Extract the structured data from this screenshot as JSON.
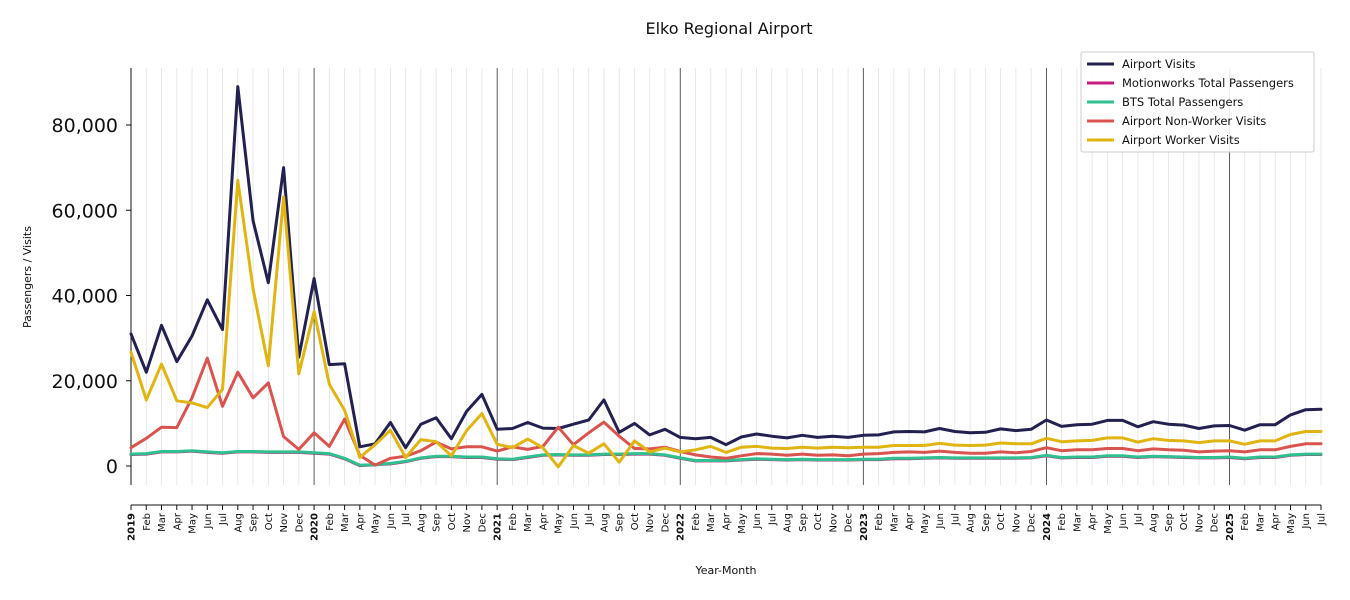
{
  "chart_data": {
    "type": "line",
    "title": "Elko Regional Airport",
    "xlabel": "Year-Month",
    "ylabel": "Passengers / Visits",
    "ylim": [
      -4500,
      93000
    ],
    "yticks": [
      0,
      20000,
      40000,
      60000,
      80000
    ],
    "ytick_labels": [
      "0",
      "20,000",
      "40,000",
      "60,000",
      "80,000"
    ],
    "grid": "vertical lines at each month; darker at each January",
    "legend_position": "top-right",
    "x": [
      "2019",
      "Feb",
      "Mar",
      "Apr",
      "May",
      "Jun",
      "Jul",
      "Aug",
      "Sep",
      "Oct",
      "Nov",
      "Dec",
      "2020",
      "Feb",
      "Mar",
      "Apr",
      "May",
      "Jun",
      "Jul",
      "Aug",
      "Sep",
      "Oct",
      "Nov",
      "Dec",
      "2021",
      "Feb",
      "Mar",
      "Apr",
      "May",
      "Jun",
      "Jul",
      "Aug",
      "Sep",
      "Oct",
      "Nov",
      "Dec",
      "2022",
      "Feb",
      "Mar",
      "Apr",
      "May",
      "Jun",
      "Jul",
      "Aug",
      "Sep",
      "Oct",
      "Nov",
      "Dec",
      "2023",
      "Feb",
      "Mar",
      "Apr",
      "May",
      "Jun",
      "Jul",
      "Aug",
      "Sep",
      "Oct",
      "Nov",
      "Dec",
      "2024",
      "Feb",
      "Mar",
      "Apr",
      "May",
      "Jun",
      "Jul",
      "Aug",
      "Sep",
      "Oct",
      "Nov",
      "Dec",
      "2025",
      "Feb",
      "Mar",
      "Apr",
      "May",
      "Jun",
      "Jul"
    ],
    "series": [
      {
        "name": "Airport Visits",
        "color": "#22214f",
        "values": [
          31000,
          22000,
          33000,
          24500,
          30500,
          39000,
          32000,
          89000,
          57500,
          43000,
          70000,
          25500,
          44000,
          23800,
          24000,
          4500,
          5200,
          10200,
          4300,
          9800,
          11300,
          6400,
          12800,
          16800,
          8600,
          8800,
          10200,
          8900,
          8800,
          9800,
          10800,
          15500,
          7900,
          10000,
          7300,
          8600,
          6700,
          6400,
          6700,
          5000,
          6800,
          7500,
          7000,
          6600,
          7200,
          6700,
          7000,
          6700,
          7200,
          7300,
          8000,
          8100,
          8000,
          8800,
          8100,
          7800,
          7900,
          8700,
          8300,
          8600,
          10800,
          9300,
          9700,
          9800,
          10700,
          10700,
          9200,
          10400,
          9800,
          9600,
          8800,
          9400,
          9500,
          8400,
          9700,
          9700,
          12000,
          13200,
          13300
        ]
      },
      {
        "name": "Motionworks Total Passengers",
        "color": "#c41d7e",
        "values": [
          2700,
          2800,
          3300,
          3300,
          3500,
          3200,
          3000,
          3300,
          3300,
          3200,
          3200,
          3200,
          3000,
          2800,
          1700,
          100,
          300,
          500,
          1000,
          1800,
          2200,
          2200,
          2000,
          2000,
          1600,
          1500,
          2000,
          2500,
          2600,
          2500,
          2500,
          2700,
          2700,
          2800,
          2800,
          2500,
          1800,
          1200,
          1200,
          1200,
          1400,
          1600,
          1500,
          1400,
          1500,
          1400,
          1400,
          1400,
          1500,
          1500,
          1700,
          1700,
          1800,
          1900,
          1800,
          1800,
          1800,
          1800,
          1800,
          1900,
          2400,
          1900,
          2000,
          2000,
          2300,
          2300,
          2000,
          2200,
          2100,
          2000,
          1900,
          1900,
          2000,
          1700,
          2000,
          2000,
          2500,
          2700,
          2700
        ]
      },
      {
        "name": "BTS Total Passengers",
        "color": "#2ec08e",
        "values": [
          2800,
          2900,
          3400,
          3400,
          3600,
          3300,
          3100,
          3400,
          3400,
          3300,
          3300,
          3300,
          3100,
          2900,
          1800,
          200,
          300,
          600,
          1100,
          1900,
          2300,
          2300,
          2100,
          2100,
          1700,
          1600,
          2100,
          2600,
          2700,
          2600,
          2600,
          2800,
          2800,
          2900,
          2900,
          2600,
          1900,
          1300,
          1300,
          1300,
          1500,
          1700,
          1600,
          1500,
          1600,
          1500,
          1500,
          1500,
          1600,
          1600,
          1800,
          1800,
          1900,
          2000,
          1900,
          1900,
          1900,
          1900,
          1900,
          2000,
          2500,
          2000,
          2100,
          2100,
          2400,
          2400,
          2100,
          2300,
          2200,
          2100,
          2000,
          2000,
          2100,
          1800,
          2100,
          2100,
          2600,
          2800,
          2800
        ]
      },
      {
        "name": "Airport Non-Worker Visits",
        "color": "#d9534f",
        "values": [
          4300,
          6500,
          9100,
          9000,
          16000,
          25300,
          14000,
          22000,
          16000,
          19500,
          6900,
          3900,
          7800,
          4600,
          11000,
          2500,
          200,
          1800,
          2300,
          3600,
          5600,
          4000,
          4500,
          4500,
          3500,
          4500,
          3900,
          4600,
          9100,
          5000,
          7800,
          10300,
          7000,
          4100,
          4000,
          4400,
          3400,
          2600,
          2100,
          1800,
          2400,
          2900,
          2800,
          2500,
          2800,
          2500,
          2600,
          2400,
          2800,
          2900,
          3200,
          3300,
          3200,
          3500,
          3200,
          3000,
          3000,
          3300,
          3100,
          3400,
          4300,
          3600,
          3800,
          3800,
          4100,
          4100,
          3600,
          4000,
          3800,
          3700,
          3300,
          3500,
          3600,
          3300,
          3800,
          3800,
          4600,
          5200,
          5200
        ]
      },
      {
        "name": "Airport Worker Visits",
        "color": "#e0b411",
        "values": [
          26700,
          15500,
          23900,
          15300,
          14800,
          13700,
          18000,
          67000,
          41500,
          23500,
          63100,
          21600,
          36200,
          19200,
          13100,
          2000,
          5000,
          8400,
          2000,
          6200,
          5700,
          2400,
          8300,
          12300,
          5100,
          4300,
          6300,
          4300,
          -200,
          4800,
          3000,
          5200,
          900,
          5900,
          3300,
          4200,
          3300,
          3800,
          4600,
          3200,
          4400,
          4600,
          4200,
          4100,
          4400,
          4200,
          4400,
          4300,
          4400,
          4400,
          4800,
          4800,
          4800,
          5300,
          4900,
          4800,
          4900,
          5400,
          5200,
          5200,
          6500,
          5700,
          5900,
          6000,
          6600,
          6600,
          5600,
          6400,
          6000,
          5900,
          5500,
          5900,
          5900,
          5100,
          5900,
          5900,
          7400,
          8100,
          8100
        ]
      }
    ]
  }
}
